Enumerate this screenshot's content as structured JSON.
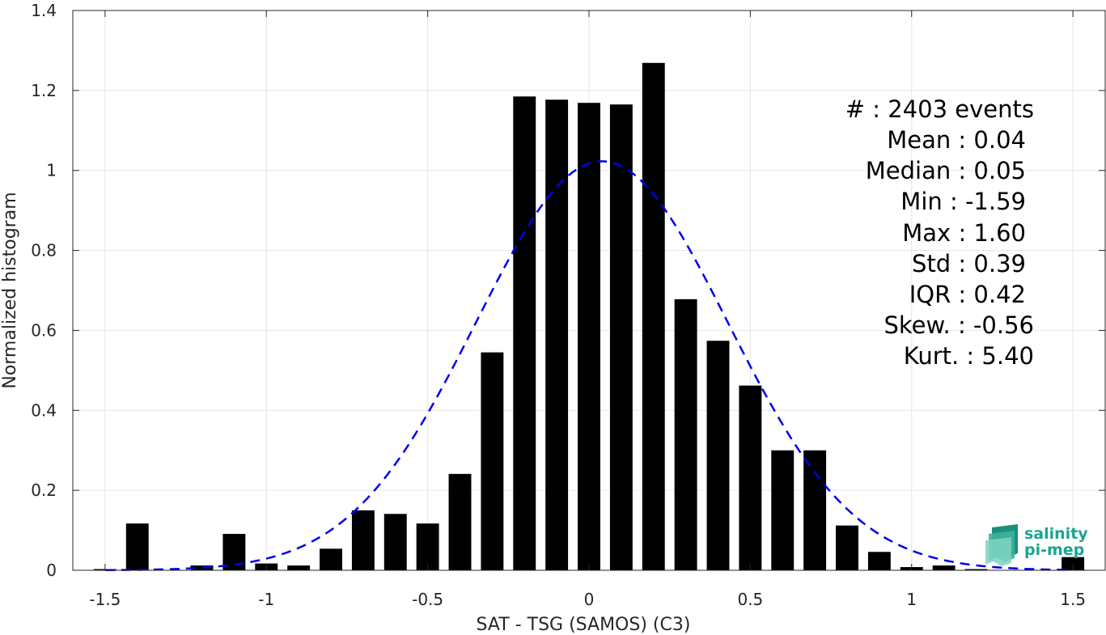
{
  "chart_data": {
    "type": "bar",
    "xlabel": "SAT - TSG (SAMOS) (C3)",
    "ylabel": "Normalized histogram",
    "xlim": [
      -1.6,
      1.6
    ],
    "ylim": [
      0,
      1.4
    ],
    "x_ticks": [
      "-1.5",
      "-1",
      "-0.5",
      "0",
      "0.5",
      "1",
      "1.5"
    ],
    "x_tick_values": [
      -1.5,
      -1,
      -0.5,
      0,
      0.5,
      1,
      1.5
    ],
    "y_ticks": [
      "0",
      "0.2",
      "0.4",
      "0.6",
      "0.8",
      "1",
      "1.2",
      "1.4"
    ],
    "y_tick_values": [
      0,
      0.2,
      0.4,
      0.6,
      0.8,
      1,
      1.2,
      1.4
    ],
    "grid": true,
    "bin_width": 0.1,
    "bar_fraction": 0.7,
    "bar_color": "#000000",
    "bins": [
      {
        "x": -1.5,
        "value": 0.003
      },
      {
        "x": -1.4,
        "value": 0.117
      },
      {
        "x": -1.2,
        "value": 0.012
      },
      {
        "x": -1.1,
        "value": 0.091
      },
      {
        "x": -1.0,
        "value": 0.017
      },
      {
        "x": -0.9,
        "value": 0.012
      },
      {
        "x": -0.8,
        "value": 0.054
      },
      {
        "x": -0.7,
        "value": 0.15
      },
      {
        "x": -0.6,
        "value": 0.141
      },
      {
        "x": -0.5,
        "value": 0.117
      },
      {
        "x": -0.4,
        "value": 0.241
      },
      {
        "x": -0.3,
        "value": 0.545
      },
      {
        "x": -0.2,
        "value": 1.185
      },
      {
        "x": -0.1,
        "value": 1.177
      },
      {
        "x": 0.0,
        "value": 1.169
      },
      {
        "x": 0.1,
        "value": 1.165
      },
      {
        "x": 0.2,
        "value": 1.269
      },
      {
        "x": 0.3,
        "value": 0.678
      },
      {
        "x": 0.4,
        "value": 0.574
      },
      {
        "x": 0.5,
        "value": 0.462
      },
      {
        "x": 0.6,
        "value": 0.3
      },
      {
        "x": 0.7,
        "value": 0.3
      },
      {
        "x": 0.8,
        "value": 0.112
      },
      {
        "x": 0.9,
        "value": 0.046
      },
      {
        "x": 1.0,
        "value": 0.008
      },
      {
        "x": 1.1,
        "value": 0.012
      },
      {
        "x": 1.2,
        "value": 0.003
      },
      {
        "x": 1.5,
        "value": 0.033
      }
    ],
    "fit_curve": {
      "type": "gaussian",
      "style": "dashed",
      "color": "#0000ee",
      "mean": 0.04,
      "std": 0.39,
      "x_range": [
        -1.5,
        1.5
      ]
    }
  },
  "stats": [
    "#  : 2403 events",
    "Mean : 0.04",
    "Median : 0.05",
    "Min : -1.59",
    "Max : 1.60",
    "Std : 0.39",
    "IQR : 0.42",
    "Skew. : -0.56",
    "Kurt. : 5.40"
  ],
  "logo": {
    "line1": "salinity",
    "line2": "pi-mep",
    "color": "#1aa58d"
  }
}
